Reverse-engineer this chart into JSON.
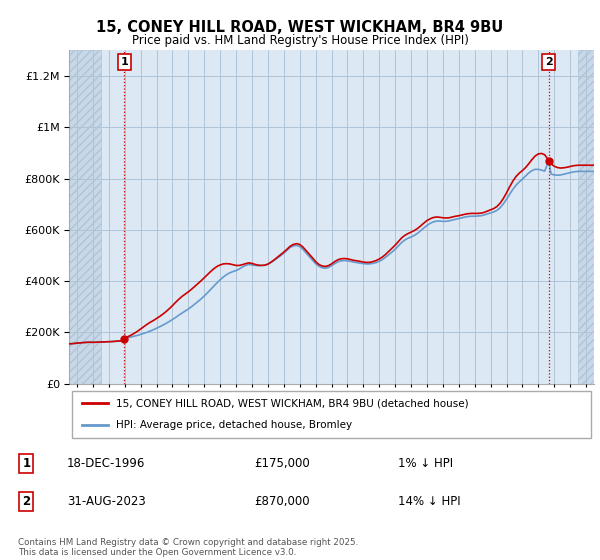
{
  "title": "15, CONEY HILL ROAD, WEST WICKHAM, BR4 9BU",
  "subtitle": "Price paid vs. HM Land Registry's House Price Index (HPI)",
  "legend_label1": "15, CONEY HILL ROAD, WEST WICKHAM, BR4 9BU (detached house)",
  "legend_label2": "HPI: Average price, detached house, Bromley",
  "annotation1_date": "18-DEC-1996",
  "annotation1_price": "£175,000",
  "annotation1_hpi": "1% ↓ HPI",
  "annotation2_date": "31-AUG-2023",
  "annotation2_price": "£870,000",
  "annotation2_hpi": "14% ↓ HPI",
  "footer": "Contains HM Land Registry data © Crown copyright and database right 2025.\nThis data is licensed under the Open Government Licence v3.0.",
  "sale1_year": 1996.97,
  "sale1_price": 175000,
  "sale2_year": 2023.66,
  "sale2_price": 870000,
  "ylim": [
    0,
    1300000
  ],
  "xlim_start": 1993.5,
  "xlim_end": 2026.5,
  "hatch_left_end": 1995.5,
  "hatch_right_start": 2025.5,
  "price_color": "#cc0000",
  "hpi_color": "#6699cc",
  "plot_bg_color": "#dce9f5",
  "hatch_bg_color": "#c8d8e8",
  "grid_color": "#b0c4d8",
  "hpi_data": [
    [
      1993.5,
      155000
    ],
    [
      1993.7,
      156000
    ],
    [
      1993.9,
      157000
    ],
    [
      1994.0,
      158000
    ],
    [
      1994.2,
      159000
    ],
    [
      1994.4,
      160000
    ],
    [
      1994.6,
      161000
    ],
    [
      1994.8,
      161500
    ],
    [
      1995.0,
      161000
    ],
    [
      1995.2,
      161500
    ],
    [
      1995.4,
      162000
    ],
    [
      1995.6,
      162500
    ],
    [
      1995.8,
      163000
    ],
    [
      1996.0,
      163500
    ],
    [
      1996.2,
      164000
    ],
    [
      1996.4,
      165000
    ],
    [
      1996.6,
      166000
    ],
    [
      1996.8,
      167000
    ],
    [
      1996.97,
      175000
    ],
    [
      1997.0,
      176000
    ],
    [
      1997.2,
      179000
    ],
    [
      1997.4,
      182000
    ],
    [
      1997.6,
      185000
    ],
    [
      1997.8,
      188000
    ],
    [
      1998.0,
      192000
    ],
    [
      1998.2,
      196000
    ],
    [
      1998.4,
      200000
    ],
    [
      1998.6,
      205000
    ],
    [
      1998.8,
      210000
    ],
    [
      1999.0,
      216000
    ],
    [
      1999.2,
      222000
    ],
    [
      1999.4,
      228000
    ],
    [
      1999.6,
      235000
    ],
    [
      1999.8,
      242000
    ],
    [
      2000.0,
      250000
    ],
    [
      2000.2,
      258000
    ],
    [
      2000.4,
      267000
    ],
    [
      2000.6,
      275000
    ],
    [
      2000.8,
      283000
    ],
    [
      2001.0,
      291000
    ],
    [
      2001.2,
      300000
    ],
    [
      2001.4,
      310000
    ],
    [
      2001.6,
      320000
    ],
    [
      2001.8,
      330000
    ],
    [
      2002.0,
      342000
    ],
    [
      2002.2,
      354000
    ],
    [
      2002.4,
      367000
    ],
    [
      2002.6,
      380000
    ],
    [
      2002.8,
      393000
    ],
    [
      2003.0,
      405000
    ],
    [
      2003.2,
      416000
    ],
    [
      2003.4,
      425000
    ],
    [
      2003.6,
      432000
    ],
    [
      2003.8,
      437000
    ],
    [
      2004.0,
      441000
    ],
    [
      2004.2,
      447000
    ],
    [
      2004.4,
      455000
    ],
    [
      2004.6,
      461000
    ],
    [
      2004.8,
      465000
    ],
    [
      2005.0,
      463000
    ],
    [
      2005.2,
      461000
    ],
    [
      2005.4,
      460000
    ],
    [
      2005.6,
      461000
    ],
    [
      2005.8,
      462000
    ],
    [
      2006.0,
      466000
    ],
    [
      2006.2,
      473000
    ],
    [
      2006.4,
      481000
    ],
    [
      2006.6,
      490000
    ],
    [
      2006.8,
      499000
    ],
    [
      2007.0,
      509000
    ],
    [
      2007.2,
      520000
    ],
    [
      2007.4,
      531000
    ],
    [
      2007.6,
      537000
    ],
    [
      2007.8,
      539000
    ],
    [
      2008.0,
      535000
    ],
    [
      2008.2,
      524000
    ],
    [
      2008.4,
      510000
    ],
    [
      2008.6,
      496000
    ],
    [
      2008.8,
      482000
    ],
    [
      2009.0,
      468000
    ],
    [
      2009.2,
      458000
    ],
    [
      2009.4,
      452000
    ],
    [
      2009.6,
      450000
    ],
    [
      2009.8,
      453000
    ],
    [
      2010.0,
      460000
    ],
    [
      2010.2,
      468000
    ],
    [
      2010.4,
      475000
    ],
    [
      2010.6,
      479000
    ],
    [
      2010.8,
      480000
    ],
    [
      2011.0,
      479000
    ],
    [
      2011.2,
      477000
    ],
    [
      2011.4,
      474000
    ],
    [
      2011.6,
      472000
    ],
    [
      2011.8,
      470000
    ],
    [
      2012.0,
      468000
    ],
    [
      2012.2,
      467000
    ],
    [
      2012.4,
      467000
    ],
    [
      2012.6,
      469000
    ],
    [
      2012.8,
      472000
    ],
    [
      2013.0,
      477000
    ],
    [
      2013.2,
      484000
    ],
    [
      2013.4,
      493000
    ],
    [
      2013.6,
      503000
    ],
    [
      2013.8,
      513000
    ],
    [
      2014.0,
      524000
    ],
    [
      2014.2,
      537000
    ],
    [
      2014.4,
      550000
    ],
    [
      2014.6,
      560000
    ],
    [
      2014.8,
      567000
    ],
    [
      2015.0,
      572000
    ],
    [
      2015.2,
      578000
    ],
    [
      2015.4,
      586000
    ],
    [
      2015.6,
      596000
    ],
    [
      2015.8,
      607000
    ],
    [
      2016.0,
      617000
    ],
    [
      2016.2,
      625000
    ],
    [
      2016.4,
      631000
    ],
    [
      2016.6,
      634000
    ],
    [
      2016.8,
      634000
    ],
    [
      2017.0,
      633000
    ],
    [
      2017.2,
      633000
    ],
    [
      2017.4,
      635000
    ],
    [
      2017.6,
      638000
    ],
    [
      2017.8,
      641000
    ],
    [
      2018.0,
      644000
    ],
    [
      2018.2,
      647000
    ],
    [
      2018.4,
      650000
    ],
    [
      2018.6,
      652000
    ],
    [
      2018.8,
      653000
    ],
    [
      2019.0,
      653000
    ],
    [
      2019.2,
      654000
    ],
    [
      2019.4,
      655000
    ],
    [
      2019.6,
      658000
    ],
    [
      2019.8,
      662000
    ],
    [
      2020.0,
      666000
    ],
    [
      2020.2,
      670000
    ],
    [
      2020.4,
      676000
    ],
    [
      2020.6,
      686000
    ],
    [
      2020.8,
      701000
    ],
    [
      2021.0,
      719000
    ],
    [
      2021.2,
      739000
    ],
    [
      2021.4,
      758000
    ],
    [
      2021.6,
      774000
    ],
    [
      2021.8,
      787000
    ],
    [
      2022.0,
      798000
    ],
    [
      2022.2,
      810000
    ],
    [
      2022.4,
      822000
    ],
    [
      2022.6,
      831000
    ],
    [
      2022.8,
      836000
    ],
    [
      2023.0,
      836000
    ],
    [
      2023.2,
      833000
    ],
    [
      2023.4,
      829000
    ],
    [
      2023.66,
      870000
    ],
    [
      2023.8,
      818000
    ],
    [
      2024.0,
      814000
    ],
    [
      2024.2,
      813000
    ],
    [
      2024.4,
      814000
    ],
    [
      2024.6,
      817000
    ],
    [
      2024.8,
      820000
    ],
    [
      2025.0,
      823000
    ],
    [
      2025.2,
      826000
    ],
    [
      2025.5,
      828000
    ],
    [
      2026.5,
      828000
    ]
  ],
  "price_data": [
    [
      1993.5,
      155000
    ],
    [
      1993.7,
      156000
    ],
    [
      1993.9,
      157000
    ],
    [
      1994.0,
      158000
    ],
    [
      1994.2,
      159000
    ],
    [
      1994.4,
      160000
    ],
    [
      1994.6,
      161000
    ],
    [
      1994.8,
      161500
    ],
    [
      1995.0,
      161000
    ],
    [
      1995.2,
      161500
    ],
    [
      1995.4,
      162000
    ],
    [
      1995.6,
      162500
    ],
    [
      1995.8,
      163000
    ],
    [
      1996.0,
      163500
    ],
    [
      1996.2,
      164000
    ],
    [
      1996.4,
      165000
    ],
    [
      1996.6,
      166000
    ],
    [
      1996.8,
      167000
    ],
    [
      1996.97,
      175000
    ],
    [
      1997.0,
      178000
    ],
    [
      1997.2,
      183000
    ],
    [
      1997.4,
      189000
    ],
    [
      1997.6,
      196000
    ],
    [
      1997.8,
      204000
    ],
    [
      1998.0,
      213000
    ],
    [
      1998.2,
      222000
    ],
    [
      1998.4,
      231000
    ],
    [
      1998.6,
      239000
    ],
    [
      1998.8,
      246000
    ],
    [
      1999.0,
      254000
    ],
    [
      1999.2,
      262000
    ],
    [
      1999.4,
      271000
    ],
    [
      1999.6,
      281000
    ],
    [
      1999.8,
      292000
    ],
    [
      2000.0,
      304000
    ],
    [
      2000.2,
      317000
    ],
    [
      2000.4,
      329000
    ],
    [
      2000.6,
      340000
    ],
    [
      2000.8,
      349000
    ],
    [
      2001.0,
      358000
    ],
    [
      2001.2,
      368000
    ],
    [
      2001.4,
      379000
    ],
    [
      2001.6,
      390000
    ],
    [
      2001.8,
      401000
    ],
    [
      2002.0,
      413000
    ],
    [
      2002.2,
      425000
    ],
    [
      2002.4,
      437000
    ],
    [
      2002.6,
      448000
    ],
    [
      2002.8,
      457000
    ],
    [
      2003.0,
      463000
    ],
    [
      2003.2,
      467000
    ],
    [
      2003.4,
      468000
    ],
    [
      2003.6,
      467000
    ],
    [
      2003.8,
      464000
    ],
    [
      2004.0,
      461000
    ],
    [
      2004.2,
      461000
    ],
    [
      2004.4,
      464000
    ],
    [
      2004.6,
      468000
    ],
    [
      2004.8,
      471000
    ],
    [
      2005.0,
      469000
    ],
    [
      2005.2,
      465000
    ],
    [
      2005.4,
      462000
    ],
    [
      2005.6,
      461000
    ],
    [
      2005.8,
      462000
    ],
    [
      2006.0,
      466000
    ],
    [
      2006.2,
      474000
    ],
    [
      2006.4,
      483000
    ],
    [
      2006.6,
      493000
    ],
    [
      2006.8,
      503000
    ],
    [
      2007.0,
      513000
    ],
    [
      2007.2,
      524000
    ],
    [
      2007.4,
      536000
    ],
    [
      2007.6,
      543000
    ],
    [
      2007.8,
      546000
    ],
    [
      2008.0,
      543000
    ],
    [
      2008.2,
      533000
    ],
    [
      2008.4,
      519000
    ],
    [
      2008.6,
      505000
    ],
    [
      2008.8,
      491000
    ],
    [
      2009.0,
      476000
    ],
    [
      2009.2,
      465000
    ],
    [
      2009.4,
      459000
    ],
    [
      2009.6,
      457000
    ],
    [
      2009.8,
      460000
    ],
    [
      2010.0,
      467000
    ],
    [
      2010.2,
      476000
    ],
    [
      2010.4,
      483000
    ],
    [
      2010.6,
      487000
    ],
    [
      2010.8,
      488000
    ],
    [
      2011.0,
      487000
    ],
    [
      2011.2,
      484000
    ],
    [
      2011.4,
      481000
    ],
    [
      2011.6,
      479000
    ],
    [
      2011.8,
      477000
    ],
    [
      2012.0,
      474000
    ],
    [
      2012.2,
      473000
    ],
    [
      2012.4,
      473000
    ],
    [
      2012.6,
      476000
    ],
    [
      2012.8,
      480000
    ],
    [
      2013.0,
      486000
    ],
    [
      2013.2,
      494000
    ],
    [
      2013.4,
      504000
    ],
    [
      2013.6,
      516000
    ],
    [
      2013.8,
      528000
    ],
    [
      2014.0,
      540000
    ],
    [
      2014.2,
      554000
    ],
    [
      2014.4,
      568000
    ],
    [
      2014.6,
      578000
    ],
    [
      2014.8,
      585000
    ],
    [
      2015.0,
      591000
    ],
    [
      2015.2,
      597000
    ],
    [
      2015.4,
      605000
    ],
    [
      2015.6,
      615000
    ],
    [
      2015.8,
      626000
    ],
    [
      2016.0,
      636000
    ],
    [
      2016.2,
      643000
    ],
    [
      2016.4,
      648000
    ],
    [
      2016.6,
      650000
    ],
    [
      2016.8,
      649000
    ],
    [
      2017.0,
      647000
    ],
    [
      2017.2,
      646000
    ],
    [
      2017.4,
      647000
    ],
    [
      2017.6,
      650000
    ],
    [
      2017.8,
      653000
    ],
    [
      2018.0,
      655000
    ],
    [
      2018.2,
      658000
    ],
    [
      2018.4,
      661000
    ],
    [
      2018.6,
      663000
    ],
    [
      2018.8,
      664000
    ],
    [
      2019.0,
      664000
    ],
    [
      2019.2,
      664000
    ],
    [
      2019.4,
      665000
    ],
    [
      2019.6,
      668000
    ],
    [
      2019.8,
      673000
    ],
    [
      2020.0,
      678000
    ],
    [
      2020.2,
      683000
    ],
    [
      2020.4,
      691000
    ],
    [
      2020.6,
      704000
    ],
    [
      2020.8,
      722000
    ],
    [
      2021.0,
      744000
    ],
    [
      2021.2,
      768000
    ],
    [
      2021.4,
      790000
    ],
    [
      2021.6,
      808000
    ],
    [
      2021.8,
      821000
    ],
    [
      2022.0,
      831000
    ],
    [
      2022.2,
      843000
    ],
    [
      2022.4,
      858000
    ],
    [
      2022.6,
      874000
    ],
    [
      2022.8,
      888000
    ],
    [
      2023.0,
      896000
    ],
    [
      2023.2,
      898000
    ],
    [
      2023.4,
      893000
    ],
    [
      2023.66,
      870000
    ],
    [
      2023.8,
      858000
    ],
    [
      2024.0,
      848000
    ],
    [
      2024.2,
      843000
    ],
    [
      2024.4,
      841000
    ],
    [
      2024.6,
      842000
    ],
    [
      2024.8,
      844000
    ],
    [
      2025.0,
      847000
    ],
    [
      2025.2,
      850000
    ],
    [
      2025.5,
      852000
    ],
    [
      2026.5,
      852000
    ]
  ]
}
